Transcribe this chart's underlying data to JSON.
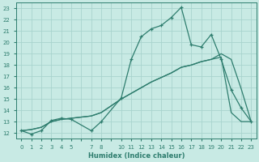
{
  "xlabel": "Humidex (Indice chaleur)",
  "ylabel": "",
  "bg_color": "#c8eae4",
  "grid_color": "#a8d4ce",
  "line_color": "#2e7d6e",
  "xlim": [
    -0.5,
    23.5
  ],
  "ylim": [
    11.5,
    23.5
  ],
  "yticks": [
    12,
    13,
    14,
    15,
    16,
    17,
    18,
    19,
    20,
    21,
    22,
    23
  ],
  "line1_x": [
    0,
    1,
    2,
    3,
    4,
    5,
    7,
    8,
    10,
    11,
    12,
    13,
    14,
    15,
    16,
    17,
    18,
    19,
    20,
    21,
    22,
    23
  ],
  "line1_y": [
    12.2,
    11.9,
    12.2,
    13.1,
    13.3,
    13.2,
    12.2,
    13.0,
    15.1,
    18.5,
    20.5,
    21.2,
    21.5,
    22.2,
    23.1,
    19.8,
    19.6,
    20.7,
    18.5,
    15.8,
    14.2,
    13.0
  ],
  "line2_x": [
    0,
    1,
    2,
    3,
    4,
    5,
    7,
    8,
    10,
    11,
    12,
    13,
    14,
    15,
    16,
    17,
    18,
    19,
    20,
    21,
    22,
    23
  ],
  "line2_y": [
    12.2,
    12.3,
    12.5,
    13.0,
    13.2,
    13.3,
    13.5,
    13.8,
    15.0,
    15.5,
    16.0,
    16.5,
    16.9,
    17.3,
    17.8,
    18.0,
    18.3,
    18.5,
    18.7,
    13.8,
    13.0,
    13.0
  ],
  "line3_x": [
    0,
    1,
    2,
    3,
    4,
    5,
    7,
    8,
    10,
    11,
    12,
    13,
    14,
    15,
    16,
    17,
    18,
    19,
    20,
    21,
    22,
    23
  ],
  "line3_y": [
    12.2,
    12.3,
    12.5,
    13.0,
    13.2,
    13.3,
    13.5,
    13.8,
    15.0,
    15.5,
    16.0,
    16.5,
    16.9,
    17.3,
    17.8,
    18.0,
    18.3,
    18.5,
    19.0,
    18.5,
    15.9,
    13.0
  ]
}
